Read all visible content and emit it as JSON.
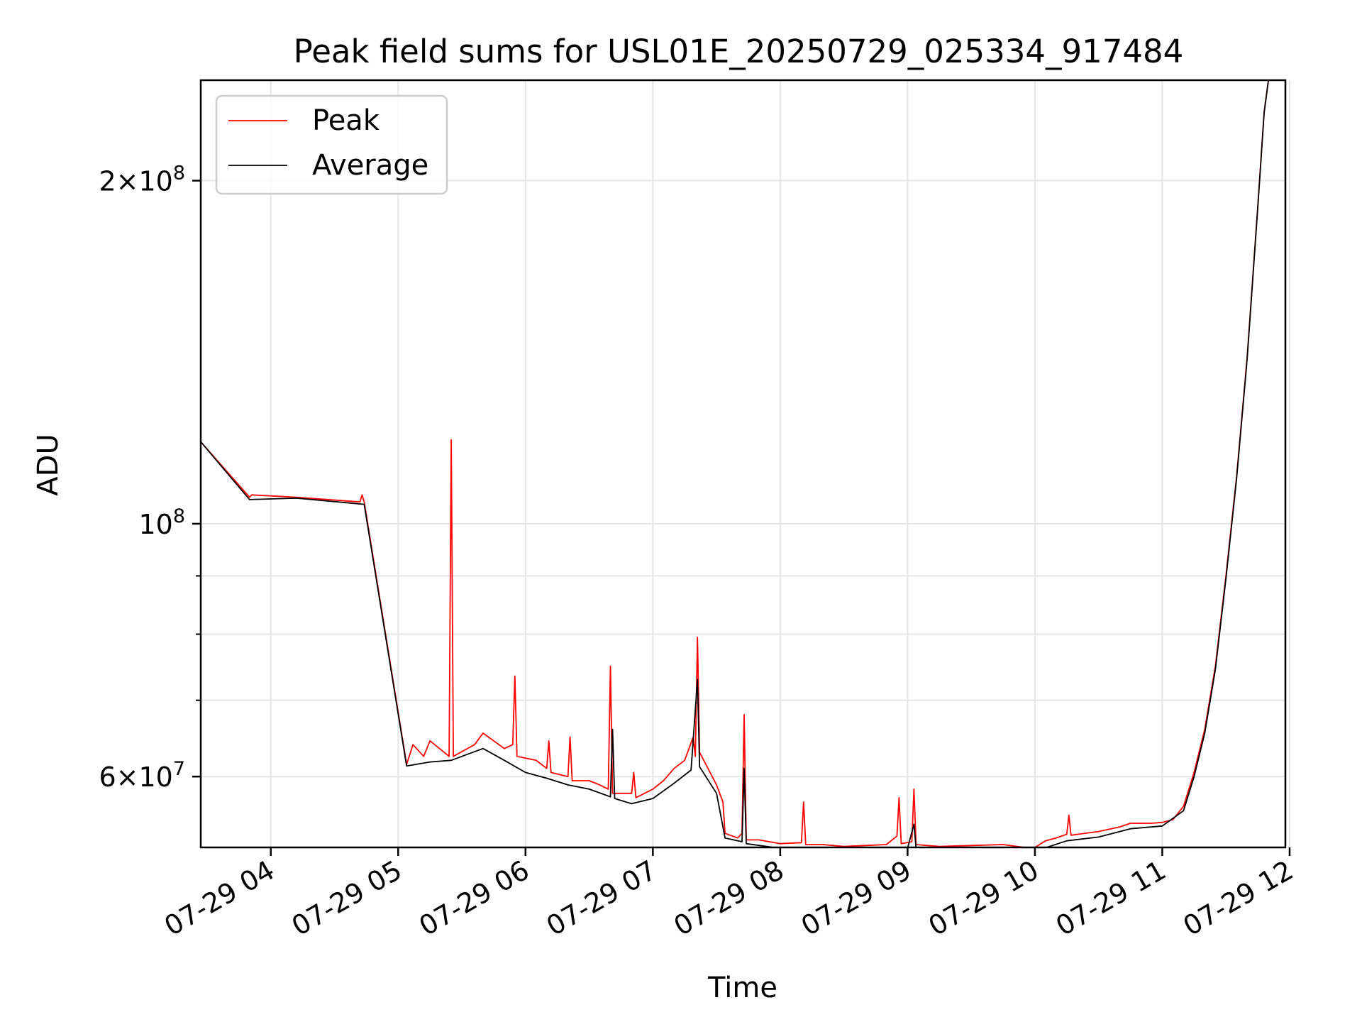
{
  "chart_data": {
    "type": "line",
    "title": "Peak field sums for USL01E_20250729_025334_917484",
    "xlabel": "Time",
    "ylabel": "ADU",
    "x_scale": "time",
    "y_scale": "log",
    "x_range": [
      "2025-07-29 03:27",
      "2025-07-29 11:58"
    ],
    "ylim": [
      52000000,
      245000000
    ],
    "grid": true,
    "legend_position": "upper left",
    "x_tick_labels": [
      "07-29 04",
      "07-29 05",
      "07-29 06",
      "07-29 07",
      "07-29 08",
      "07-29 09",
      "07-29 10",
      "07-29 11",
      "07-29 12"
    ],
    "x_tick_times": [
      "2025-07-29 04:00",
      "2025-07-29 05:00",
      "2025-07-29 06:00",
      "2025-07-29 07:00",
      "2025-07-29 08:00",
      "2025-07-29 09:00",
      "2025-07-29 10:00",
      "2025-07-29 11:00",
      "2025-07-29 12:00"
    ],
    "y_major_ticks": [
      {
        "value": 60000000,
        "mantissa": "6",
        "exponent": "7"
      },
      {
        "value": 100000000,
        "mantissa": "",
        "exponent": "8"
      },
      {
        "value": 200000000,
        "mantissa": "2",
        "exponent": "8"
      }
    ],
    "y_minor_ticks": [
      70000000,
      80000000,
      90000000
    ],
    "series": [
      {
        "name": "Peak",
        "color": "#ff0000",
        "points": [
          [
            "2025-07-29 03:27",
            118000000
          ],
          [
            "2025-07-29 03:50",
            105500000
          ],
          [
            "2025-07-29 03:51",
            106000000
          ],
          [
            "2025-07-29 04:12",
            105500000
          ],
          [
            "2025-07-29 04:42",
            104500000
          ],
          [
            "2025-07-29 04:43",
            106000000
          ],
          [
            "2025-07-29 04:44",
            104500000
          ],
          [
            "2025-07-29 05:04",
            61500000
          ],
          [
            "2025-07-29 05:07",
            64000000
          ],
          [
            "2025-07-29 05:12",
            62500000
          ],
          [
            "2025-07-29 05:15",
            64500000
          ],
          [
            "2025-07-29 05:24",
            62500000
          ],
          [
            "2025-07-29 05:25",
            118500000
          ],
          [
            "2025-07-29 05:26",
            62500000
          ],
          [
            "2025-07-29 05:36",
            64000000
          ],
          [
            "2025-07-29 05:40",
            65500000
          ],
          [
            "2025-07-29 05:50",
            63500000
          ],
          [
            "2025-07-29 05:54",
            64000000
          ],
          [
            "2025-07-29 05:55",
            73500000
          ],
          [
            "2025-07-29 05:56",
            62500000
          ],
          [
            "2025-07-29 06:05",
            62000000
          ],
          [
            "2025-07-29 06:10",
            61000000
          ],
          [
            "2025-07-29 06:11",
            64500000
          ],
          [
            "2025-07-29 06:12",
            60500000
          ],
          [
            "2025-07-29 06:20",
            60000000
          ],
          [
            "2025-07-29 06:21",
            65000000
          ],
          [
            "2025-07-29 06:22",
            59500000
          ],
          [
            "2025-07-29 06:30",
            59500000
          ],
          [
            "2025-07-29 06:35",
            59000000
          ],
          [
            "2025-07-29 06:39",
            58500000
          ],
          [
            "2025-07-29 06:40",
            75000000
          ],
          [
            "2025-07-29 06:41",
            58000000
          ],
          [
            "2025-07-29 06:50",
            58000000
          ],
          [
            "2025-07-29 06:51",
            60500000
          ],
          [
            "2025-07-29 06:52",
            57500000
          ],
          [
            "2025-07-29 07:00",
            58500000
          ],
          [
            "2025-07-29 07:05",
            59500000
          ],
          [
            "2025-07-29 07:10",
            61000000
          ],
          [
            "2025-07-29 07:15",
            62000000
          ],
          [
            "2025-07-29 07:19",
            65000000
          ],
          [
            "2025-07-29 07:20",
            62500000
          ],
          [
            "2025-07-29 07:21",
            79500000
          ],
          [
            "2025-07-29 07:22",
            63000000
          ],
          [
            "2025-07-29 07:25",
            61500000
          ],
          [
            "2025-07-29 07:30",
            59000000
          ],
          [
            "2025-07-29 07:33",
            57000000
          ],
          [
            "2025-07-29 07:34",
            53500000
          ],
          [
            "2025-07-29 07:40",
            53000000
          ],
          [
            "2025-07-29 07:42",
            53500000
          ],
          [
            "2025-07-29 07:43",
            68000000
          ],
          [
            "2025-07-29 07:44",
            52800000
          ],
          [
            "2025-07-29 07:50",
            52800000
          ],
          [
            "2025-07-29 08:00",
            52400000
          ],
          [
            "2025-07-29 08:10",
            52500000
          ],
          [
            "2025-07-29 08:11",
            57000000
          ],
          [
            "2025-07-29 08:12",
            52300000
          ],
          [
            "2025-07-29 08:20",
            52300000
          ],
          [
            "2025-07-29 08:30",
            52100000
          ],
          [
            "2025-07-29 08:40",
            52200000
          ],
          [
            "2025-07-29 08:50",
            52300000
          ],
          [
            "2025-07-29 08:55",
            53200000
          ],
          [
            "2025-07-29 08:56",
            57500000
          ],
          [
            "2025-07-29 08:57",
            52400000
          ],
          [
            "2025-07-29 09:02",
            52600000
          ],
          [
            "2025-07-29 09:03",
            58500000
          ],
          [
            "2025-07-29 09:04",
            52300000
          ],
          [
            "2025-07-29 09:15",
            52100000
          ],
          [
            "2025-07-29 09:30",
            52200000
          ],
          [
            "2025-07-29 09:45",
            52300000
          ],
          [
            "2025-07-29 09:55",
            52000000
          ],
          [
            "2025-07-29 10:00",
            52000000
          ],
          [
            "2025-07-29 10:05",
            52700000
          ],
          [
            "2025-07-29 10:10",
            53000000
          ],
          [
            "2025-07-29 10:15",
            53400000
          ],
          [
            "2025-07-29 10:16",
            55500000
          ],
          [
            "2025-07-29 10:17",
            53300000
          ],
          [
            "2025-07-29 10:30",
            53700000
          ],
          [
            "2025-07-29 10:40",
            54200000
          ],
          [
            "2025-07-29 10:45",
            54600000
          ],
          [
            "2025-07-29 10:55",
            54600000
          ],
          [
            "2025-07-29 11:00",
            54700000
          ],
          [
            "2025-07-29 11:05",
            55000000
          ],
          [
            "2025-07-29 11:10",
            56500000
          ],
          [
            "2025-07-29 11:15",
            60500000
          ],
          [
            "2025-07-29 11:20",
            66000000
          ],
          [
            "2025-07-29 11:25",
            75000000
          ],
          [
            "2025-07-29 11:30",
            90000000
          ],
          [
            "2025-07-29 11:35",
            110000000
          ],
          [
            "2025-07-29 11:40",
            140000000
          ],
          [
            "2025-07-29 11:45",
            190000000
          ],
          [
            "2025-07-29 11:48",
            230000000
          ],
          [
            "2025-07-29 11:50",
            245000000
          ]
        ]
      },
      {
        "name": "Average",
        "color": "#000000",
        "points": [
          [
            "2025-07-29 03:27",
            118000000
          ],
          [
            "2025-07-29 03:50",
            105000000
          ],
          [
            "2025-07-29 04:12",
            105300000
          ],
          [
            "2025-07-29 04:44",
            104000000
          ],
          [
            "2025-07-29 05:04",
            61300000
          ],
          [
            "2025-07-29 05:15",
            61800000
          ],
          [
            "2025-07-29 05:25",
            62000000
          ],
          [
            "2025-07-29 05:35",
            63000000
          ],
          [
            "2025-07-29 05:40",
            63500000
          ],
          [
            "2025-07-29 05:50",
            62000000
          ],
          [
            "2025-07-29 06:00",
            60500000
          ],
          [
            "2025-07-29 06:10",
            59800000
          ],
          [
            "2025-07-29 06:20",
            59000000
          ],
          [
            "2025-07-29 06:30",
            58500000
          ],
          [
            "2025-07-29 06:40",
            57600000
          ],
          [
            "2025-07-29 06:41",
            66000000
          ],
          [
            "2025-07-29 06:42",
            57400000
          ],
          [
            "2025-07-29 06:50",
            56800000
          ],
          [
            "2025-07-29 07:00",
            57400000
          ],
          [
            "2025-07-29 07:10",
            59200000
          ],
          [
            "2025-07-29 07:18",
            60800000
          ],
          [
            "2025-07-29 07:21",
            73000000
          ],
          [
            "2025-07-29 07:22",
            61200000
          ],
          [
            "2025-07-29 07:30",
            58000000
          ],
          [
            "2025-07-29 07:34",
            53000000
          ],
          [
            "2025-07-29 07:42",
            52600000
          ],
          [
            "2025-07-29 07:43",
            61000000
          ],
          [
            "2025-07-29 07:44",
            52400000
          ],
          [
            "2025-07-29 08:00",
            51900000
          ],
          [
            "2025-07-29 08:20",
            51800000
          ],
          [
            "2025-07-29 08:30",
            51700000
          ],
          [
            "2025-07-29 09:00",
            51900000
          ],
          [
            "2025-07-29 09:03",
            54500000
          ],
          [
            "2025-07-29 09:04",
            51900000
          ],
          [
            "2025-07-29 09:30",
            51900000
          ],
          [
            "2025-07-29 09:55",
            51700000
          ],
          [
            "2025-07-29 10:00",
            51600000
          ],
          [
            "2025-07-29 10:15",
            52700000
          ],
          [
            "2025-07-29 10:30",
            53100000
          ],
          [
            "2025-07-29 10:45",
            54000000
          ],
          [
            "2025-07-29 11:00",
            54300000
          ],
          [
            "2025-07-29 11:10",
            56000000
          ],
          [
            "2025-07-29 11:15",
            60000000
          ],
          [
            "2025-07-29 11:20",
            65500000
          ],
          [
            "2025-07-29 11:25",
            74500000
          ],
          [
            "2025-07-29 11:30",
            89500000
          ],
          [
            "2025-07-29 11:35",
            109500000
          ],
          [
            "2025-07-29 11:40",
            139500000
          ],
          [
            "2025-07-29 11:45",
            189500000
          ],
          [
            "2025-07-29 11:48",
            229500000
          ],
          [
            "2025-07-29 11:50",
            245000000
          ]
        ]
      }
    ]
  }
}
